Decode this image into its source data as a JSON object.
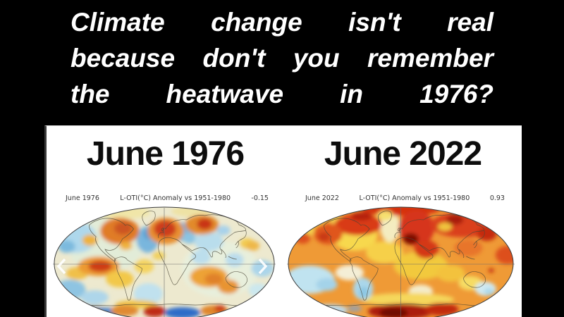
{
  "colors": {
    "background": "#000000",
    "panel": "#ffffff",
    "meme_text": "#ffffff",
    "title_text": "#0d0d0d"
  },
  "meme": {
    "lines": [
      [
        "Climate",
        "change",
        "isn't",
        "real"
      ],
      [
        "because",
        "don't",
        "you",
        "remember"
      ],
      [
        "the",
        "heatwave",
        "in",
        "1976?"
      ]
    ]
  },
  "panels": {
    "left": {
      "title": "June 1976",
      "caption": {
        "date": "June 1976",
        "metric": "L-OTI(°C) Anomaly vs 1951-1980",
        "value": "-0.15"
      }
    },
    "right": {
      "title": "June 2022",
      "caption": {
        "date": "June 2022",
        "metric": "L-OTI(°C) Anomaly vs 1951-1980",
        "value": "0.93"
      }
    }
  },
  "carousel": {
    "prev_icon": "chevron-left",
    "next_icon": "chevron-right"
  },
  "maps": {
    "left": {
      "label": "Global temperature anomaly map, June 1976",
      "base": "#ede9cf",
      "blobs": [
        [
          75,
          55,
          55,
          40,
          "#e2ecd8"
        ],
        [
          240,
          90,
          55,
          40,
          "#e8efdc"
        ],
        [
          100,
          10,
          40,
          9,
          "#f0e6a8"
        ],
        [
          200,
          8,
          30,
          8,
          "#eee2a4"
        ],
        [
          33,
          45,
          30,
          22,
          "#aed8ec"
        ],
        [
          20,
          58,
          12,
          9,
          "#7cbade"
        ],
        [
          136,
          48,
          16,
          19,
          "#79b6dd"
        ],
        [
          138,
          40,
          8,
          8,
          "#549ed2"
        ],
        [
          186,
          37,
          17,
          13,
          "#6fb2da"
        ],
        [
          196,
          46,
          10,
          8,
          "#8cc4e2"
        ],
        [
          224,
          51,
          21,
          14,
          "#b9ddec"
        ],
        [
          245,
          35,
          10,
          7,
          "#a8d2ea"
        ],
        [
          213,
          73,
          14,
          10,
          "#bcdeec"
        ],
        [
          261,
          77,
          13,
          10,
          "#b9dcec"
        ],
        [
          301,
          89,
          16,
          12,
          "#abd5ea"
        ],
        [
          137,
          125,
          21,
          15,
          "#c0e1ee"
        ],
        [
          25,
          119,
          22,
          14,
          "#8ec4e2"
        ],
        [
          60,
          130,
          20,
          10,
          "#aed6ea"
        ],
        [
          295,
          120,
          14,
          10,
          "#cce8ee"
        ],
        [
          96,
          36,
          28,
          19,
          "#e07b28"
        ],
        [
          101,
          32,
          13,
          9,
          "#cc5520"
        ],
        [
          53,
          49,
          11,
          8,
          "#eeb23c"
        ],
        [
          105,
          57,
          9,
          6,
          "#eeb23c"
        ],
        [
          162,
          36,
          26,
          19,
          "#e89030"
        ],
        [
          161,
          33,
          16,
          12,
          "#cd3e1b"
        ],
        [
          214,
          27,
          24,
          14,
          "#e28a2c"
        ],
        [
          218,
          26,
          11,
          8,
          "#c93418"
        ],
        [
          279,
          54,
          11,
          8,
          "#f2cc52"
        ],
        [
          287,
          57,
          10,
          7,
          "#eeb84a"
        ],
        [
          35,
          96,
          16,
          9,
          "#f0c04a"
        ],
        [
          66,
          86,
          30,
          14,
          "#ec9a32"
        ],
        [
          68,
          86,
          17,
          8,
          "#ce3c18"
        ],
        [
          96,
          104,
          20,
          12,
          "#f2c848"
        ],
        [
          131,
          86,
          14,
          10,
          "#f4d35e"
        ],
        [
          152,
          71,
          9,
          6,
          "#f0d060"
        ],
        [
          224,
          101,
          27,
          15,
          "#eda236"
        ],
        [
          231,
          104,
          13,
          8,
          "#e0812a"
        ],
        [
          252,
          115,
          15,
          10,
          "#e89430"
        ],
        [
          120,
          140,
          30,
          6,
          "#f0c44a"
        ],
        [
          8,
          156,
          14,
          6,
          "#7a5ab0"
        ],
        [
          55,
          149,
          26,
          7,
          "#a0a0a8"
        ],
        [
          79,
          152,
          17,
          7,
          "#4a86cc"
        ],
        [
          103,
          149,
          20,
          8,
          "#e08a30"
        ],
        [
          146,
          150,
          16,
          8,
          "#bf2a12"
        ],
        [
          186,
          152,
          26,
          8,
          "#2f6cc8"
        ],
        [
          232,
          149,
          20,
          8,
          "#e0862c"
        ],
        [
          240,
          146,
          8,
          5,
          "#cc3c16"
        ],
        [
          300,
          152,
          14,
          6,
          "#5a5ec0"
        ]
      ]
    },
    "right": {
      "label": "Global temperature anomaly map, June 2022",
      "base": "#ef9a36",
      "blobs": [
        [
          95,
          42,
          32,
          22,
          "#f7d84e"
        ],
        [
          70,
          20,
          10,
          7,
          "#f2cc4e"
        ],
        [
          100,
          32,
          13,
          8,
          "#f6eecb"
        ],
        [
          137,
          66,
          26,
          16,
          "#f6d049"
        ],
        [
          25,
          35,
          14,
          9,
          "#f5d04e"
        ],
        [
          35,
          20,
          20,
          10,
          "#f5cf4a"
        ],
        [
          188,
          85,
          38,
          20,
          "#f2c93e"
        ],
        [
          188,
          121,
          17,
          9,
          "#f4ecca"
        ],
        [
          230,
          96,
          20,
          12,
          "#f3c23c"
        ],
        [
          258,
          110,
          17,
          10,
          "#f6dc64"
        ],
        [
          170,
          133,
          65,
          9,
          "#f5d75c"
        ],
        [
          145,
          30,
          14,
          22,
          "#f4ecc0"
        ],
        [
          32,
          105,
          35,
          20,
          "#c0e3f0"
        ],
        [
          56,
          112,
          15,
          9,
          "#a4d3e9"
        ],
        [
          88,
          95,
          20,
          11,
          "#f4eed6"
        ],
        [
          107,
          118,
          14,
          16,
          "#abd7ea"
        ],
        [
          108,
          123,
          7,
          8,
          "#8dc7e3"
        ],
        [
          279,
          118,
          15,
          10,
          "#d0e9f2"
        ],
        [
          284,
          122,
          7,
          5,
          "#acd9ec"
        ],
        [
          60,
          148,
          25,
          8,
          "#bcd8e8"
        ],
        [
          95,
          146,
          10,
          5,
          "#a0a0a0"
        ],
        [
          100,
          27,
          33,
          15,
          "#d93a16"
        ],
        [
          105,
          15,
          15,
          6,
          "#b52408"
        ],
        [
          160,
          6,
          55,
          8,
          "#d5330f"
        ],
        [
          58,
          40,
          20,
          15,
          "#e0571e"
        ],
        [
          52,
          44,
          8,
          6,
          "#c83812"
        ],
        [
          22,
          46,
          11,
          8,
          "#dd4f1e"
        ],
        [
          138,
          14,
          11,
          7,
          "#f6e070"
        ],
        [
          182,
          32,
          25,
          25,
          "#d6341a"
        ],
        [
          174,
          47,
          11,
          8,
          "#7e1005"
        ],
        [
          196,
          62,
          17,
          13,
          "#d43716"
        ],
        [
          248,
          27,
          46,
          18,
          "#da3f1b"
        ],
        [
          222,
          30,
          10,
          6,
          "#f0c43e"
        ],
        [
          236,
          20,
          12,
          7,
          "#a81e0b"
        ],
        [
          281,
          40,
          14,
          10,
          "#c52c10"
        ],
        [
          300,
          25,
          12,
          8,
          "#f6d85c"
        ],
        [
          310,
          70,
          17,
          13,
          "#dd4f1e"
        ],
        [
          255,
          60,
          20,
          12,
          "#e8742a"
        ],
        [
          287,
          92,
          4,
          3,
          "#c22a10"
        ],
        [
          160,
          150,
          46,
          11,
          "#ab1a09"
        ],
        [
          150,
          152,
          20,
          7,
          "#6f0c04"
        ],
        [
          217,
          147,
          24,
          9,
          "#c22a10"
        ]
      ]
    }
  }
}
